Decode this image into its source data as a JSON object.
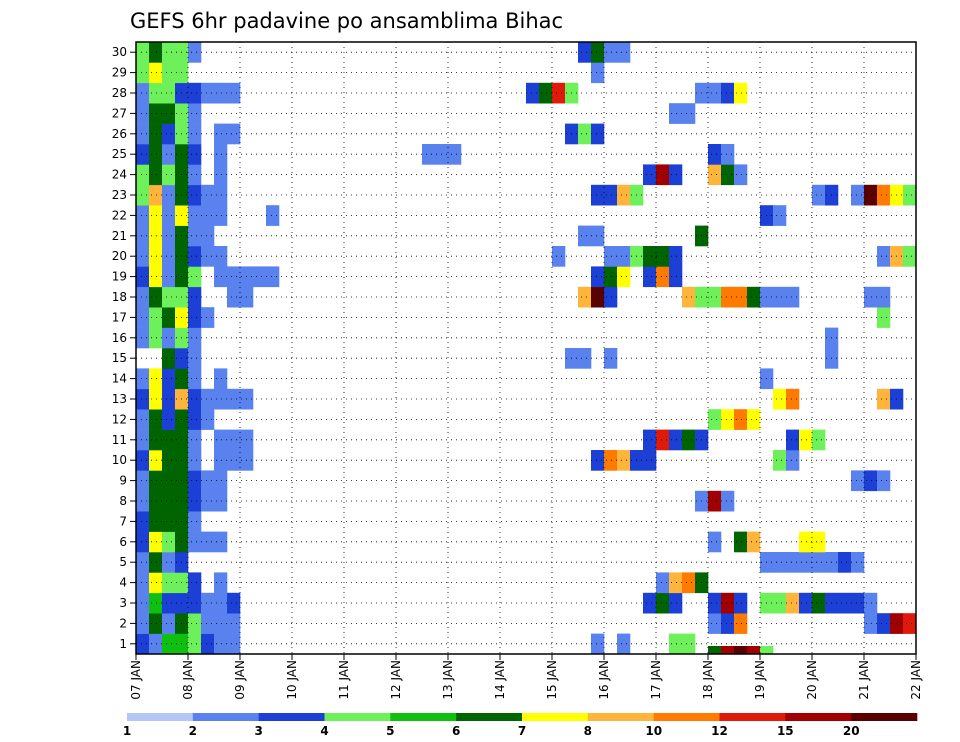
{
  "chart_data": {
    "type": "heatmap",
    "title": "GEFS 6hr padavine po ansamblima Bihac",
    "xlabel": "",
    "ylabel": "",
    "y_categories": [
      1,
      2,
      3,
      4,
      5,
      6,
      7,
      8,
      9,
      10,
      11,
      12,
      13,
      14,
      15,
      16,
      17,
      18,
      19,
      20,
      21,
      22,
      23,
      24,
      25,
      26,
      27,
      28,
      29,
      30
    ],
    "x_tick_labels": [
      "07 JAN",
      "08 JAN",
      "09 JAN",
      "10 JAN",
      "11 JAN",
      "12 JAN",
      "13 JAN",
      "14 JAN",
      "15 JAN",
      "16 JAN",
      "17 JAN",
      "18 JAN",
      "19 JAN",
      "20 JAN",
      "21 JAN",
      "22 JAN"
    ],
    "x_unit": "6-hour step from 07 JAN 00Z",
    "x_steps": 60,
    "grid": true,
    "colorbar": {
      "labels": [
        "1",
        "2",
        "3",
        "4",
        "5",
        "6",
        "7",
        "8",
        "10",
        "12",
        "15",
        "20"
      ],
      "colors": [
        "#b4c6f5",
        "#5a82ee",
        "#1c3fd6",
        "#6ef05a",
        "#10c010",
        "#006400",
        "#ffff00",
        "#ffb53c",
        "#ff7a00",
        "#e01a0a",
        "#a00000",
        "#5a0000"
      ]
    },
    "cells": [
      [
        1,
        0,
        2
      ],
      [
        1,
        1,
        1
      ],
      [
        1,
        2,
        4
      ],
      [
        1,
        3,
        4
      ],
      [
        1,
        4,
        3
      ],
      [
        1,
        5,
        2
      ],
      [
        1,
        6,
        1
      ],
      [
        1,
        7,
        1
      ],
      [
        1,
        35,
        1
      ],
      [
        1,
        37,
        1
      ],
      [
        1,
        41,
        3
      ],
      [
        1,
        42,
        3
      ],
      [
        2,
        0,
        1
      ],
      [
        2,
        1,
        5
      ],
      [
        2,
        2,
        1
      ],
      [
        2,
        3,
        5
      ],
      [
        2,
        4,
        3
      ],
      [
        2,
        5,
        1
      ],
      [
        2,
        6,
        1
      ],
      [
        2,
        7,
        1
      ],
      [
        2,
        44,
        1
      ],
      [
        2,
        45,
        2
      ],
      [
        2,
        46,
        8
      ],
      [
        2,
        56,
        1
      ],
      [
        2,
        57,
        2
      ],
      [
        2,
        58,
        10
      ],
      [
        2,
        59,
        9
      ],
      [
        3,
        0,
        1
      ],
      [
        3,
        1,
        4
      ],
      [
        3,
        2,
        2
      ],
      [
        3,
        3,
        2
      ],
      [
        3,
        4,
        2
      ],
      [
        3,
        5,
        1
      ],
      [
        3,
        6,
        1
      ],
      [
        3,
        7,
        2
      ],
      [
        3,
        39,
        2
      ],
      [
        3,
        40,
        5
      ],
      [
        3,
        41,
        2
      ],
      [
        3,
        44,
        2
      ],
      [
        3,
        45,
        10
      ],
      [
        3,
        46,
        2
      ],
      [
        3,
        48,
        3
      ],
      [
        3,
        49,
        3
      ],
      [
        3,
        50,
        7
      ],
      [
        3,
        51,
        2
      ],
      [
        3,
        52,
        5
      ],
      [
        3,
        53,
        2
      ],
      [
        3,
        54,
        2
      ],
      [
        3,
        55,
        2
      ],
      [
        3,
        56,
        1
      ],
      [
        4,
        0,
        1
      ],
      [
        4,
        1,
        6
      ],
      [
        4,
        2,
        3
      ],
      [
        4,
        3,
        3
      ],
      [
        4,
        4,
        2
      ],
      [
        4,
        6,
        1
      ],
      [
        4,
        40,
        1
      ],
      [
        4,
        41,
        7
      ],
      [
        4,
        42,
        8
      ],
      [
        4,
        43,
        5
      ],
      [
        5,
        0,
        1
      ],
      [
        5,
        1,
        5
      ],
      [
        5,
        2,
        1
      ],
      [
        5,
        3,
        2
      ],
      [
        5,
        48,
        1
      ],
      [
        5,
        49,
        1
      ],
      [
        5,
        50,
        1
      ],
      [
        5,
        51,
        1
      ],
      [
        5,
        52,
        1
      ],
      [
        5,
        53,
        1
      ],
      [
        5,
        54,
        2
      ],
      [
        5,
        55,
        1
      ],
      [
        6,
        0,
        2
      ],
      [
        6,
        1,
        6
      ],
      [
        6,
        2,
        3
      ],
      [
        6,
        3,
        5
      ],
      [
        6,
        4,
        1
      ],
      [
        6,
        5,
        1
      ],
      [
        6,
        6,
        1
      ],
      [
        6,
        44,
        1
      ],
      [
        6,
        46,
        5
      ],
      [
        6,
        47,
        7
      ],
      [
        6,
        51,
        6
      ],
      [
        6,
        52,
        6
      ],
      [
        7,
        0,
        2
      ],
      [
        7,
        1,
        5
      ],
      [
        7,
        2,
        5
      ],
      [
        7,
        3,
        5
      ],
      [
        7,
        4,
        1
      ],
      [
        8,
        0,
        1
      ],
      [
        8,
        1,
        5
      ],
      [
        8,
        2,
        5
      ],
      [
        8,
        3,
        5
      ],
      [
        8,
        4,
        2
      ],
      [
        8,
        5,
        1
      ],
      [
        8,
        6,
        1
      ],
      [
        8,
        43,
        1
      ],
      [
        8,
        44,
        10
      ],
      [
        8,
        45,
        1
      ],
      [
        9,
        0,
        1
      ],
      [
        9,
        1,
        5
      ],
      [
        9,
        2,
        5
      ],
      [
        9,
        3,
        5
      ],
      [
        9,
        4,
        2
      ],
      [
        9,
        5,
        1
      ],
      [
        9,
        6,
        1
      ],
      [
        9,
        55,
        1
      ],
      [
        9,
        56,
        2
      ],
      [
        9,
        57,
        1
      ],
      [
        10,
        0,
        2
      ],
      [
        10,
        1,
        6
      ],
      [
        10,
        2,
        5
      ],
      [
        10,
        3,
        5
      ],
      [
        10,
        4,
        1
      ],
      [
        10,
        6,
        1
      ],
      [
        10,
        7,
        1
      ],
      [
        10,
        8,
        1
      ],
      [
        10,
        35,
        2
      ],
      [
        10,
        36,
        8
      ],
      [
        10,
        37,
        7
      ],
      [
        10,
        38,
        2
      ],
      [
        10,
        39,
        2
      ],
      [
        10,
        49,
        3
      ],
      [
        10,
        50,
        1
      ],
      [
        11,
        0,
        1
      ],
      [
        11,
        1,
        5
      ],
      [
        11,
        2,
        5
      ],
      [
        11,
        3,
        5
      ],
      [
        11,
        4,
        1
      ],
      [
        11,
        6,
        1
      ],
      [
        11,
        7,
        1
      ],
      [
        11,
        8,
        1
      ],
      [
        11,
        39,
        2
      ],
      [
        11,
        40,
        9
      ],
      [
        11,
        41,
        2
      ],
      [
        11,
        42,
        5
      ],
      [
        11,
        43,
        2
      ],
      [
        11,
        50,
        2
      ],
      [
        11,
        51,
        6
      ],
      [
        11,
        52,
        3
      ],
      [
        12,
        0,
        1
      ],
      [
        12,
        1,
        5
      ],
      [
        12,
        2,
        2
      ],
      [
        12,
        3,
        5
      ],
      [
        12,
        4,
        2
      ],
      [
        12,
        5,
        1
      ],
      [
        12,
        44,
        3
      ],
      [
        12,
        45,
        6
      ],
      [
        12,
        46,
        8
      ],
      [
        12,
        47,
        6
      ],
      [
        13,
        0,
        2
      ],
      [
        13,
        1,
        6
      ],
      [
        13,
        2,
        2
      ],
      [
        13,
        3,
        7
      ],
      [
        13,
        4,
        2
      ],
      [
        13,
        5,
        1
      ],
      [
        13,
        6,
        1
      ],
      [
        13,
        7,
        1
      ],
      [
        13,
        8,
        1
      ],
      [
        13,
        49,
        6
      ],
      [
        13,
        50,
        8
      ],
      [
        13,
        57,
        7
      ],
      [
        13,
        58,
        2
      ],
      [
        14,
        0,
        1
      ],
      [
        14,
        1,
        6
      ],
      [
        14,
        2,
        2
      ],
      [
        14,
        3,
        5
      ],
      [
        14,
        4,
        1
      ],
      [
        14,
        6,
        1
      ],
      [
        14,
        48,
        1
      ],
      [
        15,
        2,
        5
      ],
      [
        15,
        3,
        2
      ],
      [
        15,
        4,
        1
      ],
      [
        15,
        33,
        1
      ],
      [
        15,
        34,
        1
      ],
      [
        15,
        36,
        1
      ],
      [
        15,
        53,
        1
      ],
      [
        16,
        0,
        1
      ],
      [
        16,
        1,
        3
      ],
      [
        16,
        2,
        1
      ],
      [
        16,
        3,
        3
      ],
      [
        16,
        4,
        1
      ],
      [
        16,
        53,
        1
      ],
      [
        17,
        0,
        1
      ],
      [
        17,
        1,
        3
      ],
      [
        17,
        2,
        5
      ],
      [
        17,
        3,
        6
      ],
      [
        17,
        4,
        2
      ],
      [
        17,
        5,
        1
      ],
      [
        17,
        57,
        3
      ],
      [
        18,
        0,
        1
      ],
      [
        18,
        1,
        5
      ],
      [
        18,
        2,
        3
      ],
      [
        18,
        3,
        3
      ],
      [
        18,
        4,
        2
      ],
      [
        18,
        7,
        1
      ],
      [
        18,
        8,
        1
      ],
      [
        18,
        34,
        7
      ],
      [
        18,
        35,
        11
      ],
      [
        18,
        36,
        2
      ],
      [
        18,
        42,
        7
      ],
      [
        18,
        43,
        3
      ],
      [
        18,
        44,
        3
      ],
      [
        18,
        45,
        8
      ],
      [
        18,
        46,
        8
      ],
      [
        18,
        47,
        5
      ],
      [
        18,
        48,
        1
      ],
      [
        18,
        49,
        1
      ],
      [
        18,
        50,
        1
      ],
      [
        18,
        56,
        1
      ],
      [
        18,
        57,
        1
      ],
      [
        19,
        0,
        2
      ],
      [
        19,
        1,
        6
      ],
      [
        19,
        2,
        1
      ],
      [
        19,
        3,
        5
      ],
      [
        19,
        4,
        3
      ],
      [
        19,
        6,
        1
      ],
      [
        19,
        7,
        1
      ],
      [
        19,
        8,
        1
      ],
      [
        19,
        9,
        1
      ],
      [
        19,
        10,
        1
      ],
      [
        19,
        35,
        2
      ],
      [
        19,
        36,
        5
      ],
      [
        19,
        37,
        6
      ],
      [
        19,
        39,
        2
      ],
      [
        19,
        40,
        8
      ],
      [
        19,
        41,
        2
      ],
      [
        20,
        0,
        1
      ],
      [
        20,
        1,
        6
      ],
      [
        20,
        2,
        1
      ],
      [
        20,
        3,
        5
      ],
      [
        20,
        4,
        2
      ],
      [
        20,
        5,
        1
      ],
      [
        20,
        6,
        1
      ],
      [
        20,
        32,
        1
      ],
      [
        20,
        36,
        1
      ],
      [
        20,
        37,
        1
      ],
      [
        20,
        38,
        3
      ],
      [
        20,
        39,
        5
      ],
      [
        20,
        40,
        5
      ],
      [
        20,
        41,
        2
      ],
      [
        20,
        57,
        1
      ],
      [
        20,
        58,
        7
      ],
      [
        20,
        59,
        3
      ],
      [
        21,
        0,
        1
      ],
      [
        21,
        1,
        6
      ],
      [
        21,
        2,
        1
      ],
      [
        21,
        3,
        5
      ],
      [
        21,
        4,
        1
      ],
      [
        21,
        5,
        1
      ],
      [
        21,
        34,
        1
      ],
      [
        21,
        35,
        1
      ],
      [
        21,
        43,
        5
      ],
      [
        22,
        0,
        1
      ],
      [
        22,
        1,
        6
      ],
      [
        22,
        2,
        1
      ],
      [
        22,
        3,
        6
      ],
      [
        22,
        4,
        1
      ],
      [
        22,
        5,
        1
      ],
      [
        22,
        6,
        1
      ],
      [
        22,
        10,
        1
      ],
      [
        22,
        48,
        2
      ],
      [
        22,
        49,
        1
      ],
      [
        23,
        0,
        3
      ],
      [
        23,
        1,
        7
      ],
      [
        23,
        2,
        1
      ],
      [
        23,
        3,
        5
      ],
      [
        23,
        4,
        2
      ],
      [
        23,
        5,
        1
      ],
      [
        23,
        6,
        1
      ],
      [
        23,
        35,
        2
      ],
      [
        23,
        36,
        2
      ],
      [
        23,
        37,
        7
      ],
      [
        23,
        38,
        3
      ],
      [
        23,
        52,
        1
      ],
      [
        23,
        53,
        2
      ],
      [
        23,
        55,
        1
      ],
      [
        23,
        56,
        11
      ],
      [
        23,
        57,
        8
      ],
      [
        23,
        58,
        6
      ],
      [
        23,
        59,
        3
      ],
      [
        24,
        0,
        3
      ],
      [
        24,
        1,
        5
      ],
      [
        24,
        2,
        3
      ],
      [
        24,
        3,
        5
      ],
      [
        24,
        4,
        1
      ],
      [
        24,
        6,
        1
      ],
      [
        24,
        39,
        2
      ],
      [
        24,
        40,
        10
      ],
      [
        24,
        41,
        2
      ],
      [
        24,
        44,
        7
      ],
      [
        24,
        45,
        5
      ],
      [
        24,
        46,
        1
      ],
      [
        25,
        0,
        2
      ],
      [
        25,
        1,
        5
      ],
      [
        25,
        2,
        1
      ],
      [
        25,
        3,
        5
      ],
      [
        25,
        4,
        2
      ],
      [
        25,
        6,
        1
      ],
      [
        25,
        22,
        1
      ],
      [
        25,
        23,
        1
      ],
      [
        25,
        24,
        1
      ],
      [
        25,
        44,
        2
      ],
      [
        25,
        45,
        1
      ],
      [
        26,
        0,
        1
      ],
      [
        26,
        1,
        5
      ],
      [
        26,
        2,
        2
      ],
      [
        26,
        3,
        3
      ],
      [
        26,
        4,
        1
      ],
      [
        26,
        6,
        1
      ],
      [
        26,
        7,
        1
      ],
      [
        26,
        33,
        2
      ],
      [
        26,
        34,
        3
      ],
      [
        26,
        35,
        2
      ],
      [
        27,
        0,
        1
      ],
      [
        27,
        1,
        5
      ],
      [
        27,
        2,
        5
      ],
      [
        27,
        3,
        3
      ],
      [
        27,
        4,
        1
      ],
      [
        27,
        41,
        1
      ],
      [
        27,
        42,
        1
      ],
      [
        28,
        0,
        1
      ],
      [
        28,
        1,
        3
      ],
      [
        28,
        2,
        3
      ],
      [
        28,
        3,
        2
      ],
      [
        28,
        4,
        2
      ],
      [
        28,
        5,
        1
      ],
      [
        28,
        6,
        1
      ],
      [
        28,
        7,
        1
      ],
      [
        28,
        30,
        2
      ],
      [
        28,
        31,
        5
      ],
      [
        28,
        32,
        9
      ],
      [
        28,
        33,
        3
      ],
      [
        28,
        43,
        1
      ],
      [
        28,
        44,
        1
      ],
      [
        28,
        45,
        2
      ],
      [
        28,
        46,
        6
      ],
      [
        29,
        0,
        3
      ],
      [
        29,
        1,
        6
      ],
      [
        29,
        2,
        3
      ],
      [
        29,
        3,
        3
      ],
      [
        29,
        35,
        1
      ],
      [
        30,
        0,
        3
      ],
      [
        30,
        1,
        5
      ],
      [
        30,
        2,
        3
      ],
      [
        30,
        3,
        3
      ],
      [
        30,
        4,
        1
      ],
      [
        30,
        34,
        2
      ],
      [
        30,
        35,
        5
      ],
      [
        30,
        36,
        1
      ],
      [
        30,
        37,
        1
      ]
    ],
    "bottom_strip": [
      [
        44,
        5
      ],
      [
        45,
        10
      ],
      [
        46,
        11
      ],
      [
        47,
        10
      ],
      [
        48,
        3
      ]
    ]
  }
}
